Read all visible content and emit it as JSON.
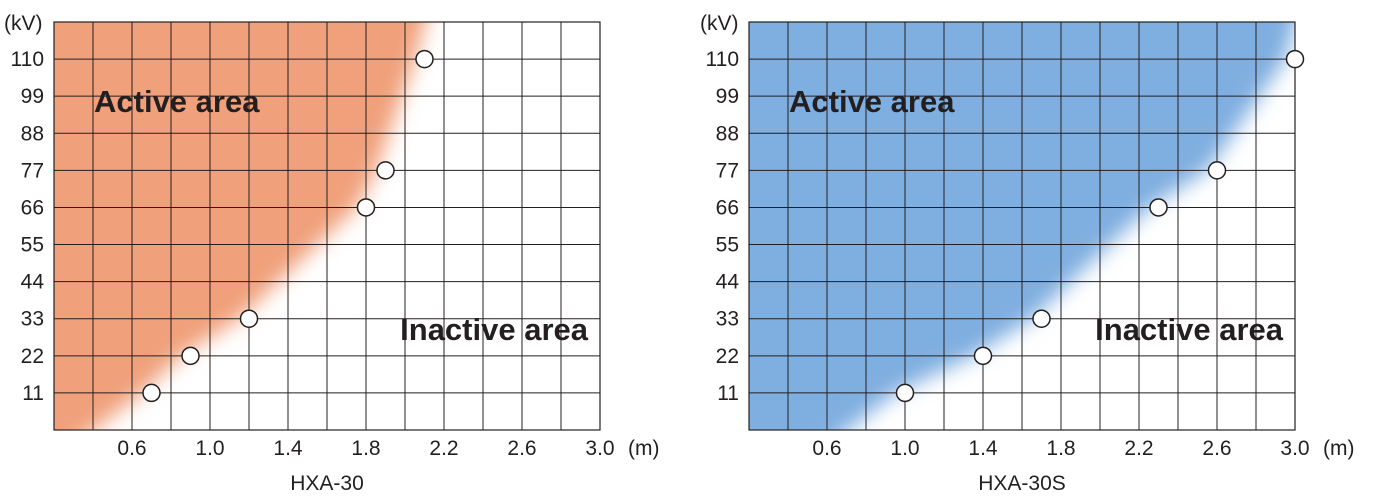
{
  "chart_data": [
    {
      "type": "scatter",
      "caption": "HXA-30",
      "x_unit": "(m)",
      "y_unit": "(kV)",
      "xlim": [
        0.2,
        3.0
      ],
      "ylim": [
        0,
        121
      ],
      "x_ticks": [
        "0.6",
        "1.0",
        "1.4",
        "1.8",
        "2.2",
        "2.6",
        "3.0"
      ],
      "y_ticks": [
        "11",
        "22",
        "33",
        "44",
        "55",
        "66",
        "77",
        "88",
        "99",
        "110"
      ],
      "grid": true,
      "active_label": "Active area",
      "inactive_label": "Inactive area",
      "active_color": "#f0a07a",
      "points": [
        {
          "x": 0.7,
          "y": 11
        },
        {
          "x": 0.9,
          "y": 22
        },
        {
          "x": 1.2,
          "y": 33
        },
        {
          "x": 1.8,
          "y": 66
        },
        {
          "x": 1.9,
          "y": 77
        },
        {
          "x": 2.1,
          "y": 110
        }
      ]
    },
    {
      "type": "scatter",
      "caption": "HXA-30S",
      "x_unit": "(m)",
      "y_unit": "(kV)",
      "xlim": [
        0.2,
        3.0
      ],
      "ylim": [
        0,
        121
      ],
      "x_ticks": [
        "0.6",
        "1.0",
        "1.4",
        "1.8",
        "2.2",
        "2.6",
        "3.0"
      ],
      "y_ticks": [
        "11",
        "22",
        "33",
        "44",
        "55",
        "66",
        "77",
        "88",
        "99",
        "110"
      ],
      "grid": true,
      "active_label": "Active area",
      "inactive_label": "Inactive area",
      "active_color": "#7faee0",
      "points": [
        {
          "x": 1.0,
          "y": 11
        },
        {
          "x": 1.4,
          "y": 22
        },
        {
          "x": 1.7,
          "y": 33
        },
        {
          "x": 2.3,
          "y": 66
        },
        {
          "x": 2.6,
          "y": 77
        },
        {
          "x": 3.0,
          "y": 110
        }
      ]
    }
  ]
}
